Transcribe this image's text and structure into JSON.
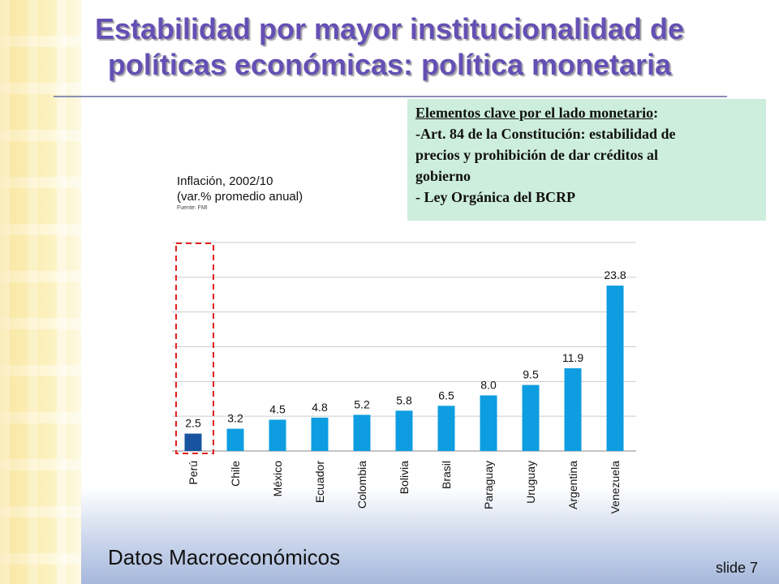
{
  "title": {
    "line1": "Estabilidad por mayor institucionalidad de",
    "line2": "políticas económicas: política monetaria"
  },
  "key_box": {
    "heading": "Elementos clave por el lado monetario",
    "heading_suffix": ":",
    "line1": "-Art. 84 de la Constitución: estabilidad de",
    "line2": "precios y prohibición de dar créditos al",
    "line3": "gobierno",
    "line4": "- Ley Orgánica del BCRP"
  },
  "chart_caption": {
    "line1": "Inflación, 2002/10",
    "line2": "(var.% promedio anual)",
    "source": "Fuente: FMI"
  },
  "chart_data": {
    "type": "bar",
    "title": "Inflación, 2002/10",
    "subtitle": "(var.% promedio anual)",
    "categories": [
      "Perú",
      "Chile",
      "México",
      "Ecuador",
      "Colombia",
      "Bolivia",
      "Brasil",
      "Paraguay",
      "Uruguay",
      "Argentina",
      "Venezuela"
    ],
    "values": [
      2.5,
      3.2,
      4.5,
      4.8,
      5.2,
      5.8,
      6.5,
      8.0,
      9.5,
      11.9,
      23.8
    ],
    "value_labels": [
      "2.5",
      "3.2",
      "4.5",
      "4.8",
      "5.2",
      "5.8",
      "6.5",
      "8.0",
      "9.5",
      "11.9",
      "23.8"
    ],
    "ylim": [
      0,
      30
    ],
    "grid": true,
    "highlighted_category": "Perú",
    "colors": {
      "bar": "#0d9de0",
      "highlight_bar": "#17539e",
      "highlight_box": "#e02020",
      "grid": "#cccccc"
    }
  },
  "footer": {
    "label": "Datos Macroeconómicos",
    "slide_label": "slide 7"
  }
}
